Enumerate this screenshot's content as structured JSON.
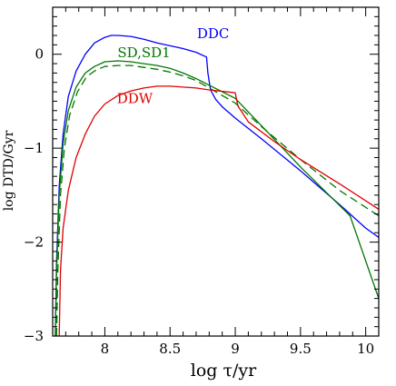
{
  "chart_data": {
    "type": "line",
    "xlabel": "log τ/yr",
    "ylabel": "log DTD/Gyr",
    "xlim": [
      7.6,
      10.1
    ],
    "ylim": [
      -3,
      0.5
    ],
    "x_ticks": [
      "8",
      "8.5",
      "9",
      "9.5",
      "10"
    ],
    "y_ticks": [
      "0",
      "−1",
      "−2",
      "−3"
    ],
    "x_tick_values": [
      8,
      8.5,
      9,
      9.5,
      10
    ],
    "y_tick_values": [
      0,
      -1,
      -2,
      -3
    ],
    "grid": false,
    "series": [
      {
        "name": "DDC",
        "color": "#0000ff",
        "dash": "solid",
        "label_at": [
          8.83,
          0.17
        ],
        "points": [
          [
            7.62,
            -3.0
          ],
          [
            7.63,
            -2.2
          ],
          [
            7.65,
            -1.4
          ],
          [
            7.68,
            -0.85
          ],
          [
            7.72,
            -0.45
          ],
          [
            7.78,
            -0.18
          ],
          [
            7.85,
            0.0
          ],
          [
            7.92,
            0.12
          ],
          [
            8.0,
            0.18
          ],
          [
            8.05,
            0.2
          ],
          [
            8.1,
            0.2
          ],
          [
            8.2,
            0.19
          ],
          [
            8.3,
            0.16
          ],
          [
            8.4,
            0.12
          ],
          [
            8.5,
            0.09
          ],
          [
            8.6,
            0.06
          ],
          [
            8.7,
            0.02
          ],
          [
            8.78,
            -0.03
          ],
          [
            8.79,
            -0.2
          ],
          [
            8.81,
            -0.38
          ],
          [
            8.85,
            -0.48
          ],
          [
            8.9,
            -0.56
          ],
          [
            9.0,
            -0.68
          ],
          [
            9.2,
            -0.9
          ],
          [
            9.5,
            -1.24
          ],
          [
            9.8,
            -1.6
          ],
          [
            10.0,
            -1.85
          ],
          [
            10.1,
            -1.95
          ]
        ]
      },
      {
        "name": "SD,SD1",
        "color": "#007700",
        "dash": "solid",
        "label_at": [
          8.3,
          -0.03
        ],
        "points": [
          [
            7.62,
            -3.0
          ],
          [
            7.63,
            -2.3
          ],
          [
            7.65,
            -1.5
          ],
          [
            7.68,
            -0.95
          ],
          [
            7.72,
            -0.6
          ],
          [
            7.78,
            -0.35
          ],
          [
            7.85,
            -0.2
          ],
          [
            7.92,
            -0.13
          ],
          [
            8.0,
            -0.08
          ],
          [
            8.1,
            -0.07
          ],
          [
            8.2,
            -0.08
          ],
          [
            8.3,
            -0.1
          ],
          [
            8.4,
            -0.12
          ],
          [
            8.5,
            -0.15
          ],
          [
            8.6,
            -0.2
          ],
          [
            8.7,
            -0.26
          ],
          [
            8.8,
            -0.33
          ],
          [
            8.9,
            -0.4
          ],
          [
            9.0,
            -0.47
          ],
          [
            9.2,
            -0.76
          ],
          [
            9.5,
            -1.2
          ],
          [
            9.88,
            -1.72
          ],
          [
            10.1,
            -2.6
          ]
        ]
      },
      {
        "name": "SD,SD1 (dashed)",
        "color": "#007700",
        "dash": "dashed",
        "points": [
          [
            7.63,
            -3.0
          ],
          [
            7.64,
            -2.3
          ],
          [
            7.66,
            -1.5
          ],
          [
            7.69,
            -1.0
          ],
          [
            7.73,
            -0.65
          ],
          [
            7.79,
            -0.4
          ],
          [
            7.86,
            -0.24
          ],
          [
            7.93,
            -0.17
          ],
          [
            8.0,
            -0.13
          ],
          [
            8.1,
            -0.12
          ],
          [
            8.2,
            -0.12
          ],
          [
            8.3,
            -0.14
          ],
          [
            8.4,
            -0.16
          ],
          [
            8.5,
            -0.19
          ],
          [
            8.6,
            -0.23
          ],
          [
            8.7,
            -0.28
          ],
          [
            8.8,
            -0.36
          ],
          [
            8.9,
            -0.44
          ],
          [
            9.0,
            -0.52
          ],
          [
            9.2,
            -0.77
          ],
          [
            9.5,
            -1.12
          ],
          [
            9.8,
            -1.45
          ],
          [
            10.1,
            -1.72
          ]
        ]
      },
      {
        "name": "DDW",
        "color": "#e00000",
        "dash": "solid",
        "label_at": [
          8.23,
          -0.52
        ],
        "points": [
          [
            7.65,
            -3.0
          ],
          [
            7.66,
            -2.3
          ],
          [
            7.68,
            -1.85
          ],
          [
            7.72,
            -1.45
          ],
          [
            7.78,
            -1.1
          ],
          [
            7.85,
            -0.85
          ],
          [
            7.92,
            -0.66
          ],
          [
            8.0,
            -0.53
          ],
          [
            8.1,
            -0.44
          ],
          [
            8.2,
            -0.39
          ],
          [
            8.3,
            -0.36
          ],
          [
            8.4,
            -0.34
          ],
          [
            8.5,
            -0.34
          ],
          [
            8.6,
            -0.35
          ],
          [
            8.7,
            -0.36
          ],
          [
            8.8,
            -0.38
          ],
          [
            9.0,
            -0.41
          ],
          [
            9.02,
            -0.55
          ],
          [
            9.1,
            -0.72
          ],
          [
            9.3,
            -0.93
          ],
          [
            9.5,
            -1.12
          ],
          [
            9.8,
            -1.38
          ],
          [
            10.1,
            -1.65
          ]
        ]
      }
    ]
  }
}
